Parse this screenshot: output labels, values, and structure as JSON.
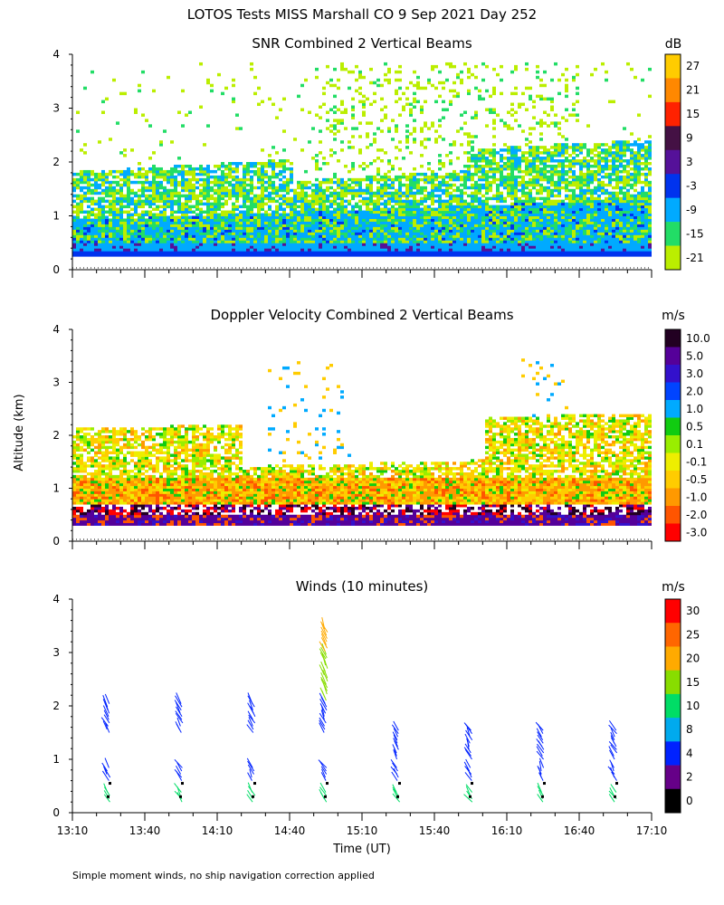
{
  "figure": {
    "title": "LOTOS Tests MISS Marshall CO   9 Sep 2021 Day 252",
    "ylabel": "Altitude (km)",
    "xlabel": "Time (UT)",
    "footnote": "Simple moment winds, no ship navigation correction applied"
  },
  "chart_data": [
    {
      "type": "heatmap",
      "title": "SNR Combined 2 Vertical Beams",
      "xlim": [
        0,
        240
      ],
      "ylim": [
        0,
        4
      ],
      "yticks": [
        "0",
        "1",
        "2",
        "3",
        "4"
      ],
      "colorbar": {
        "unit": "dB",
        "labels": [
          "27",
          "21",
          "15",
          "9",
          "3",
          "-3",
          "-9",
          "-15",
          "-21"
        ],
        "colors": [
          "#ffcc00",
          "#ff8800",
          "#ff2200",
          "#441144",
          "#551199",
          "#0033ee",
          "#00aaff",
          "#22dd66",
          "#bbee00"
        ]
      }
    },
    {
      "type": "heatmap",
      "title": "Doppler Velocity Combined 2 Vertical Beams",
      "xlim": [
        0,
        240
      ],
      "ylim": [
        0,
        4
      ],
      "yticks": [
        "0",
        "1",
        "2",
        "3",
        "4"
      ],
      "colorbar": {
        "unit": "m/s",
        "labels": [
          "10.0",
          "5.0",
          "3.0",
          "2.0",
          "1.0",
          "0.5",
          "0.1",
          "-0.1",
          "-0.5",
          "-1.0",
          "-2.0",
          "-3.0"
        ],
        "colors": [
          "#220022",
          "#550099",
          "#3311cc",
          "#0044ff",
          "#00aaff",
          "#11cc11",
          "#99ee00",
          "#eeee00",
          "#ffcc00",
          "#ff9900",
          "#ff5500",
          "#ff0000"
        ]
      }
    },
    {
      "type": "scatter",
      "title": "Winds (10 minutes)",
      "xlim": [
        0,
        240
      ],
      "ylim": [
        0,
        4
      ],
      "yticks": [
        "0",
        "1",
        "2",
        "3",
        "4"
      ],
      "xtick_labels": [
        "13:10",
        "13:40",
        "14:10",
        "14:40",
        "15:10",
        "15:40",
        "16:10",
        "16:40",
        "17:10"
      ],
      "wind_profile_times_min": [
        15,
        45,
        75,
        105,
        135,
        165,
        195,
        225
      ],
      "colorbar": {
        "unit": "m/s",
        "labels": [
          "30",
          "25",
          "20",
          "15",
          "10",
          "8",
          "4",
          "2",
          "0"
        ],
        "colors": [
          "#ff0000",
          "#ff6600",
          "#ffaa00",
          "#88dd00",
          "#00dd66",
          "#00aaee",
          "#0022ff",
          "#660088",
          "#000000"
        ]
      }
    }
  ]
}
